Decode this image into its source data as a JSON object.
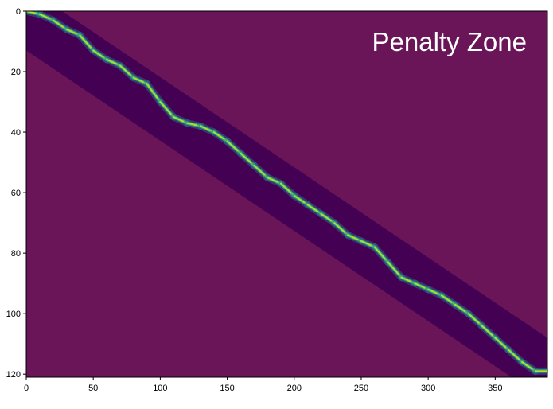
{
  "chart_data": {
    "type": "heatmap",
    "title": "",
    "xlabel": "",
    "ylabel": "",
    "annotation": "Penalty Zone",
    "x_ticks": [
      "0",
      "50",
      "100",
      "150",
      "200",
      "250",
      "300",
      "350"
    ],
    "y_ticks": [
      "0",
      "20",
      "40",
      "60",
      "80",
      "100",
      "120"
    ],
    "xlim": [
      0,
      389
    ],
    "ylim": [
      121,
      0
    ],
    "band": {
      "upper_edge": [
        [
          0,
          -8
        ],
        [
          389,
          108
        ]
      ],
      "lower_edge": [
        [
          0,
          13
        ],
        [
          389,
          129
        ]
      ]
    },
    "alignment_path": [
      [
        0,
        0
      ],
      [
        10,
        1
      ],
      [
        20,
        3
      ],
      [
        30,
        6
      ],
      [
        40,
        8
      ],
      [
        50,
        13
      ],
      [
        60,
        16
      ],
      [
        70,
        18
      ],
      [
        80,
        22
      ],
      [
        90,
        24
      ],
      [
        100,
        30
      ],
      [
        110,
        35
      ],
      [
        120,
        37
      ],
      [
        130,
        38
      ],
      [
        140,
        40
      ],
      [
        150,
        43
      ],
      [
        160,
        47
      ],
      [
        170,
        51
      ],
      [
        180,
        55
      ],
      [
        190,
        57
      ],
      [
        200,
        61
      ],
      [
        210,
        64
      ],
      [
        220,
        67
      ],
      [
        230,
        70
      ],
      [
        240,
        74
      ],
      [
        250,
        76
      ],
      [
        260,
        78
      ],
      [
        270,
        83
      ],
      [
        280,
        88
      ],
      [
        290,
        90
      ],
      [
        300,
        92
      ],
      [
        310,
        94
      ],
      [
        320,
        97
      ],
      [
        330,
        100
      ],
      [
        340,
        104
      ],
      [
        350,
        108
      ],
      [
        360,
        112
      ],
      [
        370,
        116
      ],
      [
        380,
        119
      ],
      [
        389,
        119
      ]
    ],
    "colors": {
      "penalty_zone": "#6a1558",
      "band": "#440154",
      "annotation_text": "#ffffff",
      "axis": "#000000"
    }
  }
}
